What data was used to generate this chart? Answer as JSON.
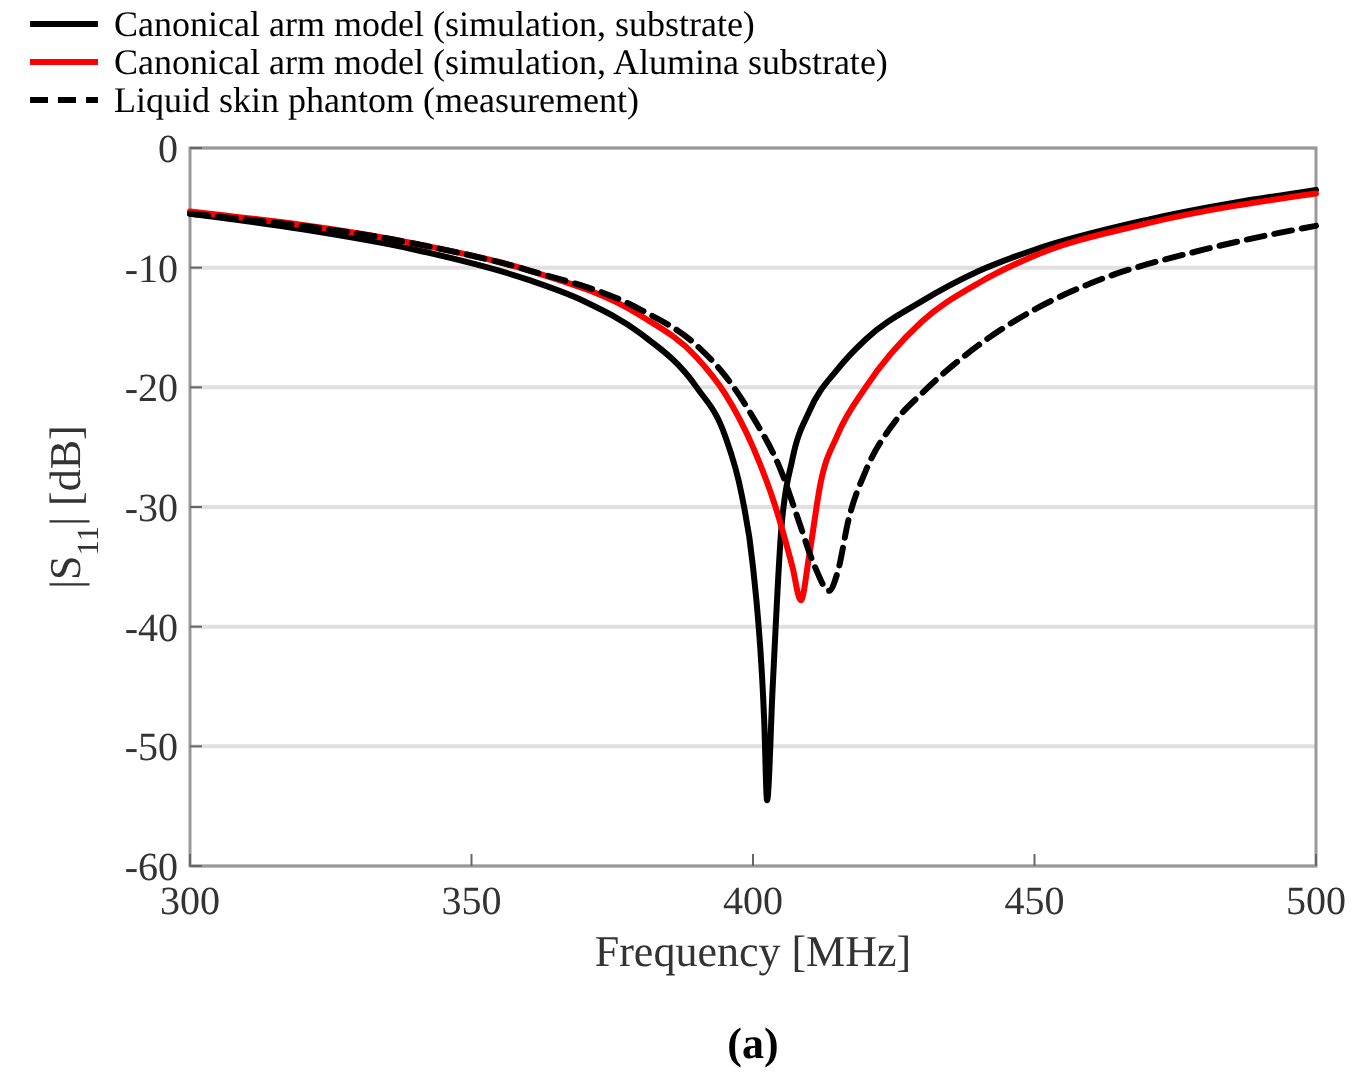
{
  "chart_data": {
    "type": "line",
    "xlabel": "Frequency [MHz]",
    "ylabel": "|S$_{11}$| [dB]",
    "annotations": [
      "(a)"
    ],
    "xlim": [
      300,
      500
    ],
    "ylim": [
      -60,
      0
    ],
    "xticks": [
      300,
      350,
      400,
      450,
      500
    ],
    "yticks": [
      -60,
      -50,
      -40,
      -30,
      -20,
      -10,
      0
    ],
    "grid": "y",
    "legend": "top",
    "series": [
      {
        "name": "Canonical arm model (simulation, substrate)",
        "color": "#000000",
        "line_style": "solid",
        "x": [
          300,
          320,
          340,
          360,
          370,
          380,
          390,
          395,
          398,
          400,
          402,
          402.5,
          403.5,
          405,
          407,
          410,
          415,
          420,
          430,
          440,
          450,
          470,
          500
        ],
        "values": [
          -5.5,
          -6.8,
          -8.5,
          -11,
          -12.8,
          -15.5,
          -20,
          -24,
          -29,
          -35,
          -48,
          -54.5,
          -45,
          -32,
          -26,
          -22,
          -18.5,
          -16,
          -12.8,
          -10.3,
          -8.5,
          -6,
          -3.5
        ]
      },
      {
        "name": "Canonical arm model (simulation, Alumina substrate)",
        "color": "#ff0000",
        "line_style": "solid",
        "x": [
          300,
          340,
          360,
          380,
          390,
          395,
          400,
          404,
          407,
          408.5,
          410,
          412,
          415,
          420,
          430,
          440,
          450,
          470,
          500
        ],
        "values": [
          -5.3,
          -8,
          -10.2,
          -14,
          -17.5,
          -20.5,
          -25,
          -30,
          -35,
          -37.8,
          -34,
          -28,
          -24,
          -20,
          -14.5,
          -11.3,
          -9,
          -6.3,
          -3.8
        ]
      },
      {
        "name": "Liquid skin phantom  (measurement)",
        "color": "#000000",
        "line_style": "dashed",
        "x": [
          300,
          340,
          360,
          380,
          390,
          395,
          400,
          405,
          408,
          411,
          413.5,
          415,
          417,
          420,
          425,
          430,
          440,
          450,
          460,
          480,
          500
        ],
        "values": [
          -5.5,
          -8,
          -10.2,
          -13.5,
          -16.5,
          -19,
          -22.5,
          -27,
          -31,
          -35,
          -37,
          -35.5,
          -31,
          -27,
          -23,
          -20.5,
          -16.5,
          -13.5,
          -11.3,
          -8.5,
          -6.5
        ]
      }
    ]
  }
}
